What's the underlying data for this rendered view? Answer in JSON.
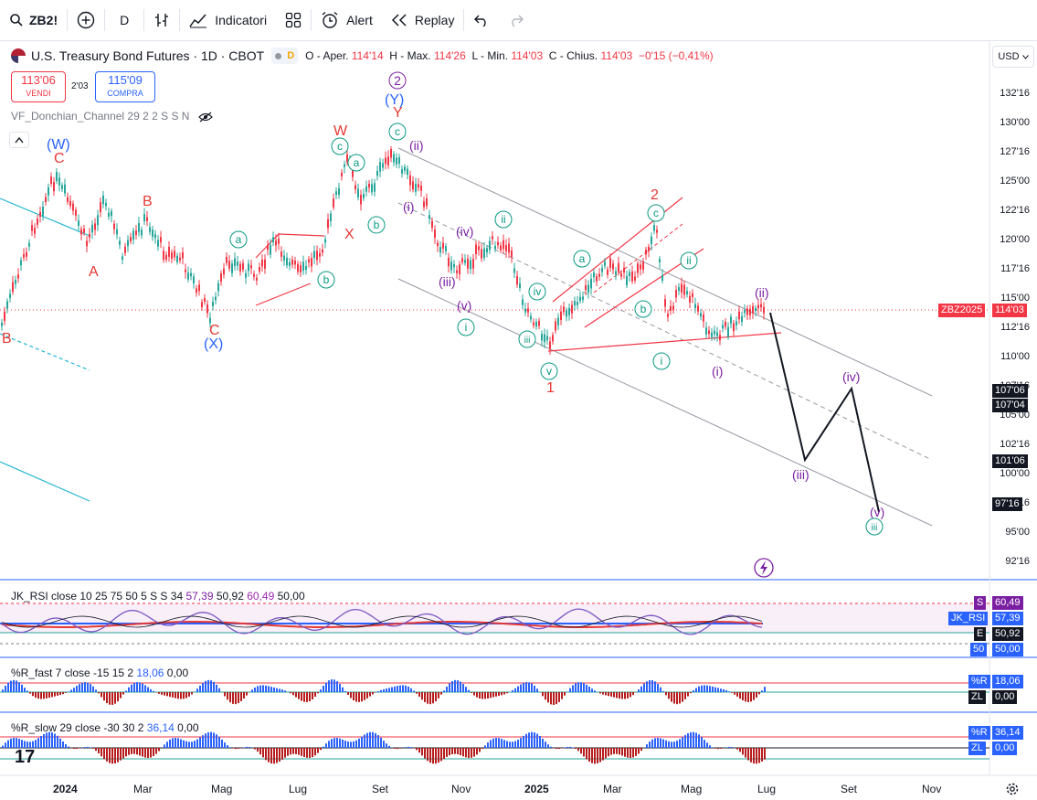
{
  "toolbar": {
    "symbol": "ZB2!",
    "interval": "D",
    "indicators_label": "Indicatori",
    "alert_label": "Alert",
    "replay_label": "Replay"
  },
  "legend": {
    "title": "U.S. Treasury Bond Futures · 1D · CBOT",
    "badge": "D",
    "o_label": "O - Aper.",
    "o_val": "114'14",
    "h_label": "H - Max.",
    "h_val": "114'26",
    "l_label": "L - Min.",
    "l_val": "114'03",
    "c_label": "C - Chius.",
    "c_val": "114'03",
    "change": "−0'15 (−0,41%)"
  },
  "trade": {
    "sell_price": "113'06",
    "sell_label": "VENDI",
    "spread": "2'03",
    "buy_price": "115'09",
    "buy_label": "COMPRA"
  },
  "overlay_indicator": "VF_Donchian_Channel 29 2 2 S S N",
  "currency": "USD",
  "price_axis": [
    "132'16",
    "130'00",
    "127'16",
    "125'00",
    "122'16",
    "120'00",
    "117'16",
    "115'00",
    "112'16",
    "110'00",
    "107'16",
    "105'00",
    "102'16",
    "100'00",
    "97'16",
    "95'00",
    "92'16"
  ],
  "price_tags": {
    "symbol_tag": "ZBZ2025",
    "last": "114'03",
    "t1": "107'06",
    "t2": "107'04",
    "t3": "101'06",
    "t4": "97'16"
  },
  "wave_labels": {
    "W_big": "(W)",
    "C1": "C",
    "A1": "A",
    "B1": "B",
    "C2": "C",
    "X_big": "(X)",
    "B0": "B",
    "W_red": "W",
    "X_red": "X",
    "Y_red": "Y",
    "Y_big": "(Y)",
    "two_circ": "2",
    "a1": "a",
    "b1": "b",
    "c1": "c",
    "a2": "a",
    "b2": "b",
    "c2": "c",
    "ii_paren": "(ii)",
    "i_paren": "(i)",
    "iv_paren": "(iv)",
    "iii_paren": "(iii)",
    "v_paren": "(v)",
    "i_circ": "i",
    "ii_circ": "ii",
    "iii_circ": "iii",
    "iv_circ": "iv",
    "v_circ": "v",
    "one_red": "1",
    "two_red": "2",
    "a3": "a",
    "b3": "b",
    "c3": "c",
    "i_circ2": "i",
    "ii_circ2": "ii",
    "i_paren2": "(i)",
    "ii_paren2": "(ii)",
    "proj_iv": "(iv)",
    "proj_iii": "(iii)",
    "proj_v": "(v)",
    "proj_iii_circ": "iii"
  },
  "rsi": {
    "title": "JK_RSI close 10 25 75 50 5 S S 34",
    "v1": "57,39",
    "v2": "50,92",
    "v3": "60,49",
    "v4": "50,00",
    "tag_s": "S",
    "tag_s_val": "60,49",
    "tag_name": "JK_RSI",
    "tag_name_val": "57,39",
    "tag_e": "E",
    "tag_e_val": "50,92",
    "tag_50": "50",
    "tag_50_val": "50,00"
  },
  "wr_fast": {
    "title": "%R_fast 7 close -15 15 2",
    "v1": "18,06",
    "v2": "0,00",
    "tag_r": "%R",
    "tag_r_val": "18,06",
    "tag_zl": "ZL",
    "tag_zl_val": "0,00"
  },
  "wr_slow": {
    "title": "%R_slow 29 close -30 30 2",
    "v1": "36,14",
    "v2": "0,00",
    "tag_r": "%R",
    "tag_r_val": "36,14",
    "tag_zl": "ZL",
    "tag_zl_val": "0,00"
  },
  "time_axis": [
    "2024",
    "Mar",
    "Mag",
    "Lug",
    "Set",
    "Nov",
    "2025",
    "Mar",
    "Mag",
    "Lug",
    "Set",
    "Nov"
  ],
  "colors": {
    "up": "#26a69a",
    "down": "#f23645",
    "wave_red": "#e53935",
    "wave_blue": "#2962ff",
    "wave_purple": "#7b1fa2",
    "wave_green": "#089981"
  }
}
